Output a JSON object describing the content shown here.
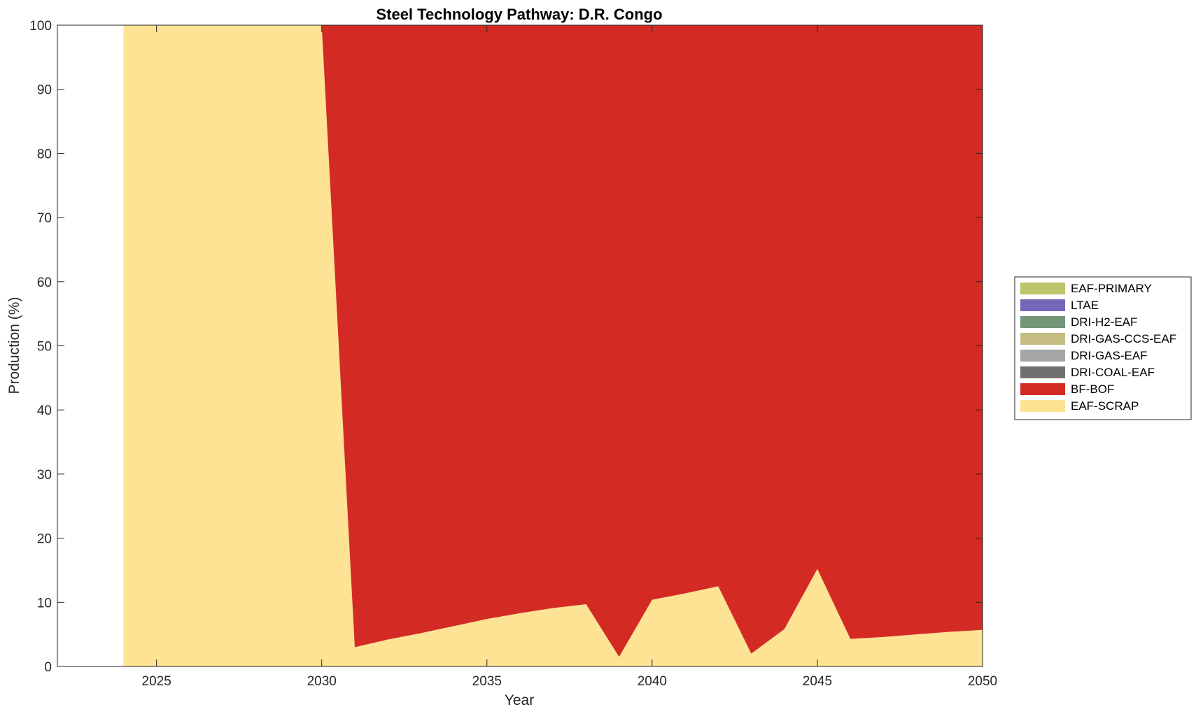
{
  "chart_data": {
    "type": "area",
    "title": "Steel Technology Pathway: D.R. Congo",
    "xlabel": "Year",
    "ylabel": "Production (%)",
    "xlim": [
      2022,
      2050
    ],
    "ylim": [
      0,
      100
    ],
    "xticks": [
      2025,
      2030,
      2035,
      2040,
      2045,
      2050
    ],
    "yticks": [
      0,
      10,
      20,
      30,
      40,
      50,
      60,
      70,
      80,
      90,
      100
    ],
    "grid": false,
    "legend_position": "right",
    "x": [
      2024,
      2025,
      2026,
      2027,
      2028,
      2029,
      2030,
      2031,
      2032,
      2033,
      2034,
      2035,
      2036,
      2037,
      2038,
      2039,
      2040,
      2041,
      2042,
      2043,
      2044,
      2045,
      2046,
      2047,
      2048,
      2049,
      2050
    ],
    "series": [
      {
        "name": "EAF-SCRAP",
        "color": "#FDE393",
        "values": [
          100,
          100,
          100,
          100,
          100,
          100,
          100,
          3.0,
          4.2,
          5.2,
          6.3,
          7.4,
          8.3,
          9.1,
          9.7,
          1.5,
          10.4,
          11.4,
          12.5,
          2.0,
          5.8,
          15.2,
          4.3,
          4.6,
          5.0,
          5.4,
          5.7
        ]
      },
      {
        "name": "BF-BOF",
        "color": "#D32B24",
        "values": [
          0,
          0,
          0,
          0,
          0,
          0,
          0,
          97.0,
          95.8,
          94.8,
          93.7,
          92.6,
          91.7,
          90.9,
          90.3,
          98.5,
          89.6,
          88.6,
          87.5,
          98.0,
          94.2,
          84.8,
          95.7,
          95.4,
          95.0,
          94.6,
          94.3
        ]
      },
      {
        "name": "DRI-COAL-EAF",
        "color": "#707070",
        "values": [
          0,
          0,
          0,
          0,
          0,
          0,
          0,
          0,
          0,
          0,
          0,
          0,
          0,
          0,
          0,
          0,
          0,
          0,
          0,
          0,
          0,
          0,
          0,
          0,
          0,
          0,
          0
        ]
      },
      {
        "name": "DRI-GAS-EAF",
        "color": "#A5A5A5",
        "values": [
          0,
          0,
          0,
          0,
          0,
          0,
          0,
          0,
          0,
          0,
          0,
          0,
          0,
          0,
          0,
          0,
          0,
          0,
          0,
          0,
          0,
          0,
          0,
          0,
          0,
          0,
          0
        ]
      },
      {
        "name": "DRI-GAS-CCS-EAF",
        "color": "#C5BD84",
        "values": [
          0,
          0,
          0,
          0,
          0,
          0,
          0,
          0,
          0,
          0,
          0,
          0,
          0,
          0,
          0,
          0,
          0,
          0,
          0,
          0,
          0,
          0,
          0,
          0,
          0,
          0,
          0
        ]
      },
      {
        "name": "DRI-H2-EAF",
        "color": "#76967A",
        "values": [
          0,
          0,
          0,
          0,
          0,
          0,
          0,
          0,
          0,
          0,
          0,
          0,
          0,
          0,
          0,
          0,
          0,
          0,
          0,
          0,
          0,
          0,
          0,
          0,
          0,
          0,
          0
        ]
      },
      {
        "name": "LTAE",
        "color": "#7468B8",
        "values": [
          0,
          0,
          0,
          0,
          0,
          0,
          0,
          0,
          0,
          0,
          0,
          0,
          0,
          0,
          0,
          0,
          0,
          0,
          0,
          0,
          0,
          0,
          0,
          0,
          0,
          0,
          0
        ]
      },
      {
        "name": "EAF-PRIMARY",
        "color": "#BCC46C",
        "values": [
          0,
          0,
          0,
          0,
          0,
          0,
          0,
          0,
          0,
          0,
          0,
          0,
          0,
          0,
          0,
          0,
          0,
          0,
          0,
          0,
          0,
          0,
          0,
          0,
          0,
          0,
          0
        ]
      }
    ],
    "legend_order": [
      "EAF-PRIMARY",
      "LTAE",
      "DRI-H2-EAF",
      "DRI-GAS-CCS-EAF",
      "DRI-GAS-EAF",
      "DRI-COAL-EAF",
      "BF-BOF",
      "EAF-SCRAP"
    ]
  }
}
